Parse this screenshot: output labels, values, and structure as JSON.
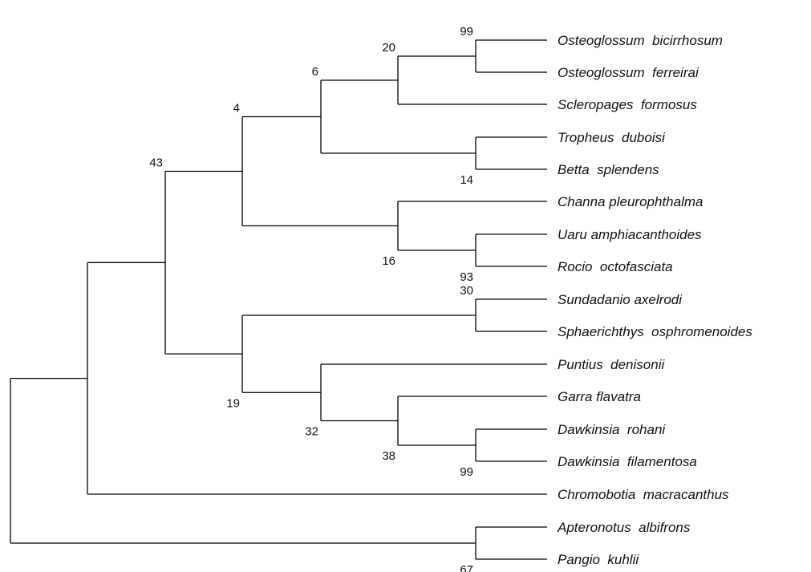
{
  "tree": {
    "line_color": "#000000",
    "taxa": [
      "Osteoglossum  bicirrhosum",
      "Osteoglossum  ferreirai",
      "Scleropages  formosus",
      "Tropheus  duboisi",
      "Betta  splendens",
      "Channa pleurophthalma",
      "Uaru amphiacanthoides",
      "Rocio  octofasciata",
      "Sundadanio axelrodi",
      "Sphaerichthys  osphromenoides",
      "Puntius  denisonii",
      "Garra flavatra",
      "Dawkinsia  rohani",
      "Dawkinsia  filamentosa",
      "Chromobotia  macracanthus",
      "Apteronotus  albifrons",
      "Pangio  kuhlii"
    ],
    "nodes": [
      {
        "id": "n_osteo",
        "children": [
          "t0",
          "t1"
        ],
        "support": "99"
      },
      {
        "id": "n_osteo_scler",
        "children": [
          "n_osteo",
          "t2"
        ],
        "support": "20"
      },
      {
        "id": "n_trop_betta",
        "children": [
          "t3",
          "t4"
        ],
        "support": "14"
      },
      {
        "id": "n_upper6",
        "children": [
          "n_osteo_scler",
          "n_trop_betta"
        ],
        "support": "6"
      },
      {
        "id": "n_uaru_rocio",
        "children": [
          "t6",
          "t7"
        ],
        "support": "93"
      },
      {
        "id": "n_channa",
        "children": [
          "t5",
          "n_uaru_rocio"
        ],
        "support": "16"
      },
      {
        "id": "n_upper4",
        "children": [
          "n_upper6",
          "n_channa"
        ],
        "support": "4"
      },
      {
        "id": "n_sund_sphae",
        "children": [
          "t8",
          "t9"
        ],
        "support": "30"
      },
      {
        "id": "n_dawk",
        "children": [
          "t12",
          "t13"
        ],
        "support": "99"
      },
      {
        "id": "n_garra",
        "children": [
          "t11",
          "n_dawk"
        ],
        "support": "38"
      },
      {
        "id": "n_puntius",
        "children": [
          "t10",
          "n_garra"
        ],
        "support": "32"
      },
      {
        "id": "n_lower19",
        "children": [
          "n_sund_sphae",
          "n_puntius"
        ],
        "support": "19"
      },
      {
        "id": "n_43",
        "children": [
          "n_upper4",
          "n_lower19"
        ],
        "support": "43"
      },
      {
        "id": "n_chromo",
        "children": [
          "n_43",
          "t14"
        ],
        "support": ""
      },
      {
        "id": "n_aptero",
        "children": [
          "t15",
          "t16"
        ],
        "support": "67"
      },
      {
        "id": "n_root",
        "children": [
          "n_chromo",
          "n_aptero"
        ],
        "support": ""
      }
    ]
  }
}
